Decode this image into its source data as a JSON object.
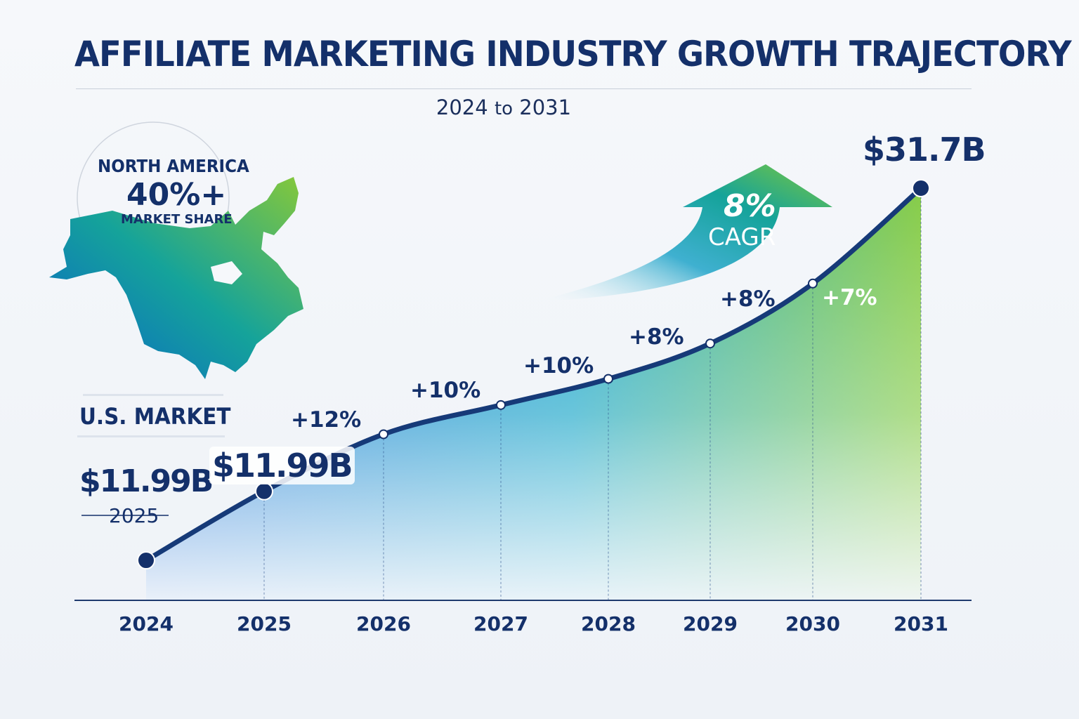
{
  "title": "AFFILIATE MARKETING INDUSTRY GROWTH TRAJECTORY",
  "subtitle": {
    "start": "2024",
    "to": "to",
    "end": "2031"
  },
  "region_callout": {
    "region": "NORTH AMERICA",
    "share": "40%+",
    "share_label": "MARKET SHARE",
    "icon": "north-america-map"
  },
  "us_market": {
    "label": "U.S. MARKET",
    "value": "$11.99B",
    "year": "2025"
  },
  "cagr": {
    "value": "8%",
    "label": "CAGR",
    "icon": "curved-up-arrow"
  },
  "colors": {
    "navy": "#14306a",
    "blue": "#1a73d9",
    "teal": "#17a6a0",
    "green": "#7cc83c"
  },
  "chart_data": {
    "type": "area",
    "title": "AFFILIATE MARKETING INDUSTRY GROWTH TRAJECTORY",
    "subtitle": "2024 to 2031",
    "categories": [
      "2024",
      "2025",
      "2026",
      "2027",
      "2028",
      "2029",
      "2030",
      "2031"
    ],
    "values": [
      7.5,
      11.99,
      15.7,
      17.6,
      19.3,
      21.6,
      25.5,
      31.7
    ],
    "value_labels": {
      "2025": "$11.99B",
      "2031": "$31.7B"
    },
    "growth_labels": [
      "+12%",
      "+10%",
      "+10%",
      "+8%",
      "+8%",
      "+7%"
    ],
    "ylim": [
      4.9,
      31.7
    ],
    "xlabel": "",
    "ylabel": "",
    "grid": false,
    "legend": "none"
  }
}
